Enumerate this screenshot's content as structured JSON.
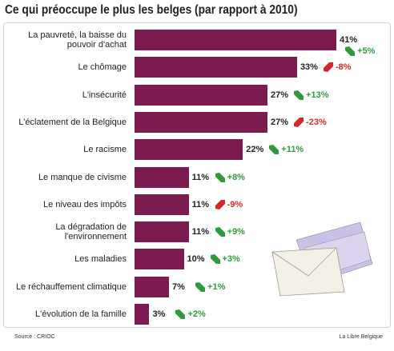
{
  "chart_data": {
    "type": "bar",
    "orientation": "horizontal",
    "title": "Ce qui préoccupe le plus les belges (par rapport à 2010)",
    "categories": [
      "La pauvreté, la baisse du pouvoir d'achat",
      "Le chômage",
      "L'insécurité",
      "L'éclatement de la Belgique",
      "Le racisme",
      "Le manque de civisme",
      "Le niveau des impôts",
      "La dégradation de l'environnement",
      "Les maladies",
      "Le réchauffement climatique",
      "L'évolution de la famille"
    ],
    "values": [
      41,
      33,
      27,
      27,
      22,
      11,
      11,
      11,
      10,
      7,
      3
    ],
    "value_labels": [
      "41%",
      "33%",
      "27%",
      "27%",
      "22%",
      "11%",
      "11%",
      "11%",
      "10%",
      "7%",
      "3%"
    ],
    "color": "#7b1b50",
    "changes": {
      "values": [
        5,
        -8,
        13,
        -23,
        11,
        8,
        -9,
        9,
        3,
        1,
        2
      ],
      "value_labels": [
        "+5%",
        "-8%",
        "+13%",
        "-23%",
        "+11%",
        "+8%",
        "-9%",
        "+9%",
        "+3%",
        "+1%",
        "+2%"
      ],
      "positive_color": "#2f9a3c",
      "negative_color": "#d1282b"
    },
    "source": "Source : CRIOC",
    "credit": "La Libre Belgique"
  }
}
